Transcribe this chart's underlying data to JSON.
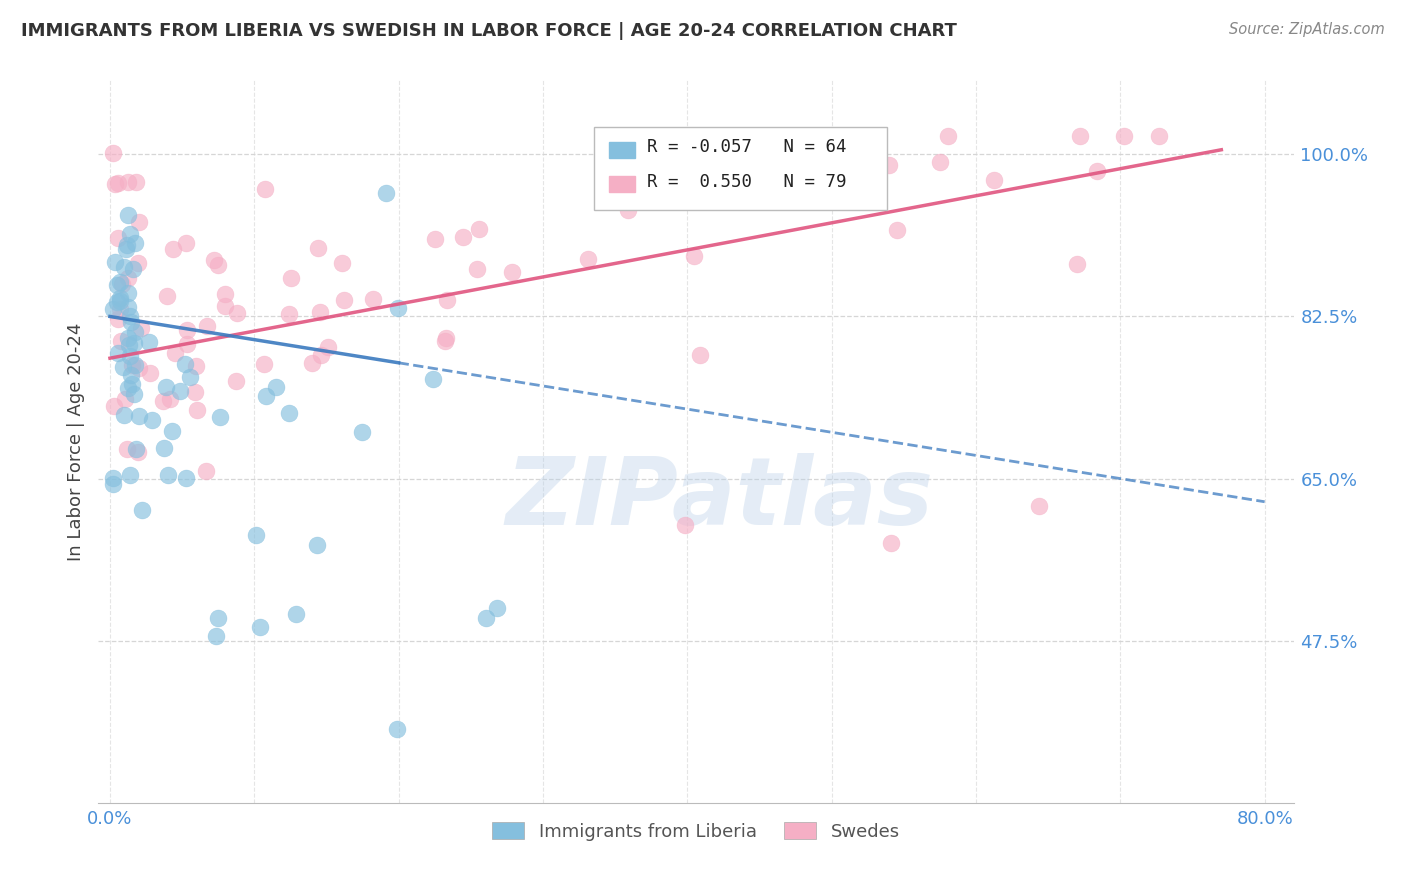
{
  "title": "IMMIGRANTS FROM LIBERIA VS SWEDISH IN LABOR FORCE | AGE 20-24 CORRELATION CHART",
  "source": "Source: ZipAtlas.com",
  "ylabel": "In Labor Force | Age 20-24",
  "xlim_data": [
    0.0,
    0.8
  ],
  "ylim_data": [
    0.3,
    1.07
  ],
  "ytick_vals": [
    0.475,
    0.65,
    0.825,
    1.0
  ],
  "ytick_labels": [
    "47.5%",
    "65.0%",
    "82.5%",
    "100.0%"
  ],
  "xtick_vals": [
    0.0,
    0.1,
    0.2,
    0.3,
    0.4,
    0.5,
    0.6,
    0.7,
    0.8
  ],
  "xtick_labels": [
    "0.0%",
    "",
    "",
    "",
    "",
    "",
    "",
    "",
    "80.0%"
  ],
  "legend_blue_R": "-0.057",
  "legend_blue_N": "64",
  "legend_pink_R": "0.550",
  "legend_pink_N": "79",
  "blue_color": "#85bfde",
  "pink_color": "#f5afc5",
  "blue_line_color": "#3b7abf",
  "pink_line_color": "#e05580",
  "watermark_text": "ZIPatlas",
  "blue_line_x0": 0.0,
  "blue_line_y0": 0.825,
  "blue_line_x1": 0.8,
  "blue_line_y1": 0.625,
  "pink_line_x0": 0.0,
  "pink_line_y0": 0.78,
  "pink_line_x1": 0.77,
  "pink_line_y1": 1.005
}
